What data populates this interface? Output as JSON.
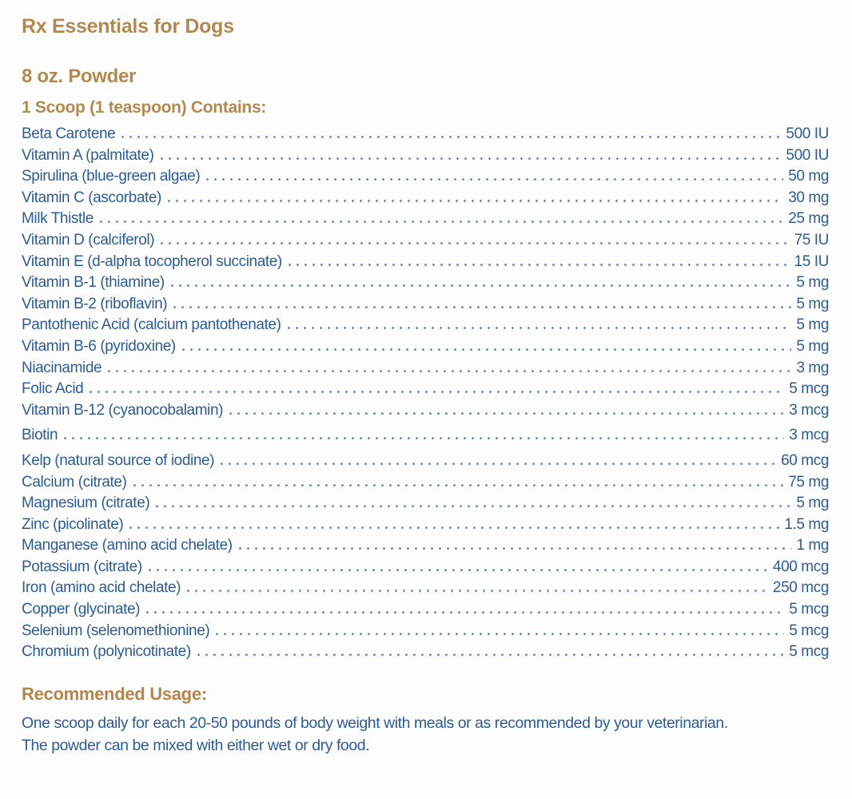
{
  "colors": {
    "heading_gold": "#b28a4f",
    "body_blue": "#2d5c95",
    "leader_dots": "#5f80aa",
    "background": "#fdfdfd"
  },
  "header": {
    "title": "Rx Essentials for Dogs",
    "size": "8 oz. Powder",
    "serving": "1 Scoop (1 teaspoon) Contains:"
  },
  "ingredients": [
    {
      "name": "Beta Carotene",
      "amount": "500 IU"
    },
    {
      "name": "Vitamin A (palmitate)",
      "amount": "500 IU"
    },
    {
      "name": "Spirulina (blue-green algae)",
      "amount": "50 mg"
    },
    {
      "name": "Vitamin C (ascorbate)",
      "amount": "30 mg"
    },
    {
      "name": "Milk Thistle",
      "amount": "25 mg"
    },
    {
      "name": "Vitamin D (calciferol)",
      "amount": "75 IU"
    },
    {
      "name": "Vitamin E (d-alpha tocopherol succinate)",
      "amount": "15 IU"
    },
    {
      "name": "Vitamin B-1 (thiamine)",
      "amount": "5 mg"
    },
    {
      "name": "Vitamin B-2 (riboflavin)",
      "amount": "5 mg"
    },
    {
      "name": "Pantothenic Acid (calcium pantothenate)",
      "amount": "5 mg"
    },
    {
      "name": "Vitamin B-6 (pyridoxine)",
      "amount": "5 mg"
    },
    {
      "name": "Niacinamide",
      "amount": "3 mg"
    },
    {
      "name": "Folic Acid",
      "amount": "5 mcg"
    },
    {
      "name": "Vitamin B-12 (cyanocobalamin)",
      "amount": "3 mcg"
    },
    {
      "name": "Biotin",
      "amount": "3 mcg"
    },
    {
      "name": "Kelp (natural source of iodine)",
      "amount": "60 mcg"
    },
    {
      "name": "Calcium (citrate)",
      "amount": "75 mg"
    },
    {
      "name": "Magnesium (citrate)",
      "amount": "5 mg"
    },
    {
      "name": "Zinc (picolinate)",
      "amount": "1.5 mg"
    },
    {
      "name": "Manganese (amino acid chelate)",
      "amount": "1 mg"
    },
    {
      "name": "Potassium (citrate)",
      "amount": "400 mcg"
    },
    {
      "name": "Iron (amino acid chelate)",
      "amount": "250 mcg"
    },
    {
      "name": "Copper (glycinate)",
      "amount": "5 mcg"
    },
    {
      "name": "Selenium (selenomethionine)",
      "amount": "5 mcg"
    },
    {
      "name": "Chromium (polynicotinate)",
      "amount": "5 mcg"
    }
  ],
  "usage": {
    "heading": "Recommended Usage:",
    "lines": [
      "One scoop daily for each 20-50 pounds of body weight with meals or as recommended by your veterinarian.",
      "The powder can be mixed with either wet or dry food."
    ]
  }
}
